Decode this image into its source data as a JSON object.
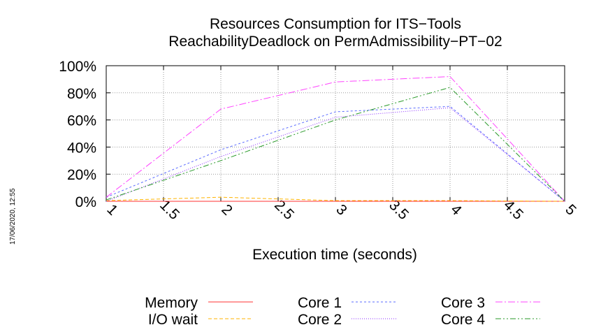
{
  "chart_data": {
    "type": "line",
    "title": "Resources Consumption for ITS−Tools",
    "subtitle": "ReachabilityDeadlock on PermAdmissibility−PT−02",
    "xlabel": "Execution time (seconds)",
    "ylabel": "",
    "timestamp": "17/06/2020, 12:55",
    "xlim": [
      1,
      5
    ],
    "ylim": [
      0,
      100
    ],
    "x_ticks": [
      "1",
      "1.5",
      "2",
      "2.5",
      "3",
      "3.5",
      "4",
      "4.5",
      "5"
    ],
    "x_tick_values": [
      1,
      1.5,
      2,
      2.5,
      3,
      3.5,
      4,
      4.5,
      5
    ],
    "y_ticks": [
      "0%",
      "20%",
      "40%",
      "60%",
      "80%",
      "100%"
    ],
    "y_tick_values": [
      0,
      20,
      40,
      60,
      80,
      100
    ],
    "grid": true,
    "legend_position": "bottom",
    "series": [
      {
        "name": "Memory",
        "color": "#ff3333",
        "dash": "solid",
        "x": [
          1,
          2,
          3,
          4,
          5
        ],
        "values": [
          0,
          0,
          0,
          0,
          0
        ]
      },
      {
        "name": "I/O wait",
        "color": "#ffb300",
        "dash": "dashed",
        "x": [
          1,
          2,
          3,
          4,
          5
        ],
        "values": [
          0.5,
          3,
          0.5,
          0.5,
          0
        ]
      },
      {
        "name": "Core 1",
        "color": "#5b6cff",
        "dash": "short-dash",
        "x": [
          1,
          2,
          3,
          4,
          5
        ],
        "values": [
          3,
          38,
          66,
          70,
          0
        ]
      },
      {
        "name": "Core 2",
        "color": "#8b2bff",
        "dash": "dotted",
        "x": [
          1,
          2,
          3,
          4,
          5
        ],
        "values": [
          0,
          33,
          62,
          69,
          0
        ]
      },
      {
        "name": "Core 3",
        "color": "#ff44ff",
        "dash": "dash-dot",
        "x": [
          1,
          2,
          3,
          4,
          5
        ],
        "values": [
          3,
          68,
          88,
          92,
          0
        ]
      },
      {
        "name": "Core 4",
        "color": "#2a9a2a",
        "dash": "dash-dot-dot",
        "x": [
          1,
          2,
          3,
          4,
          5
        ],
        "values": [
          1,
          30,
          60,
          84,
          0
        ]
      }
    ]
  }
}
